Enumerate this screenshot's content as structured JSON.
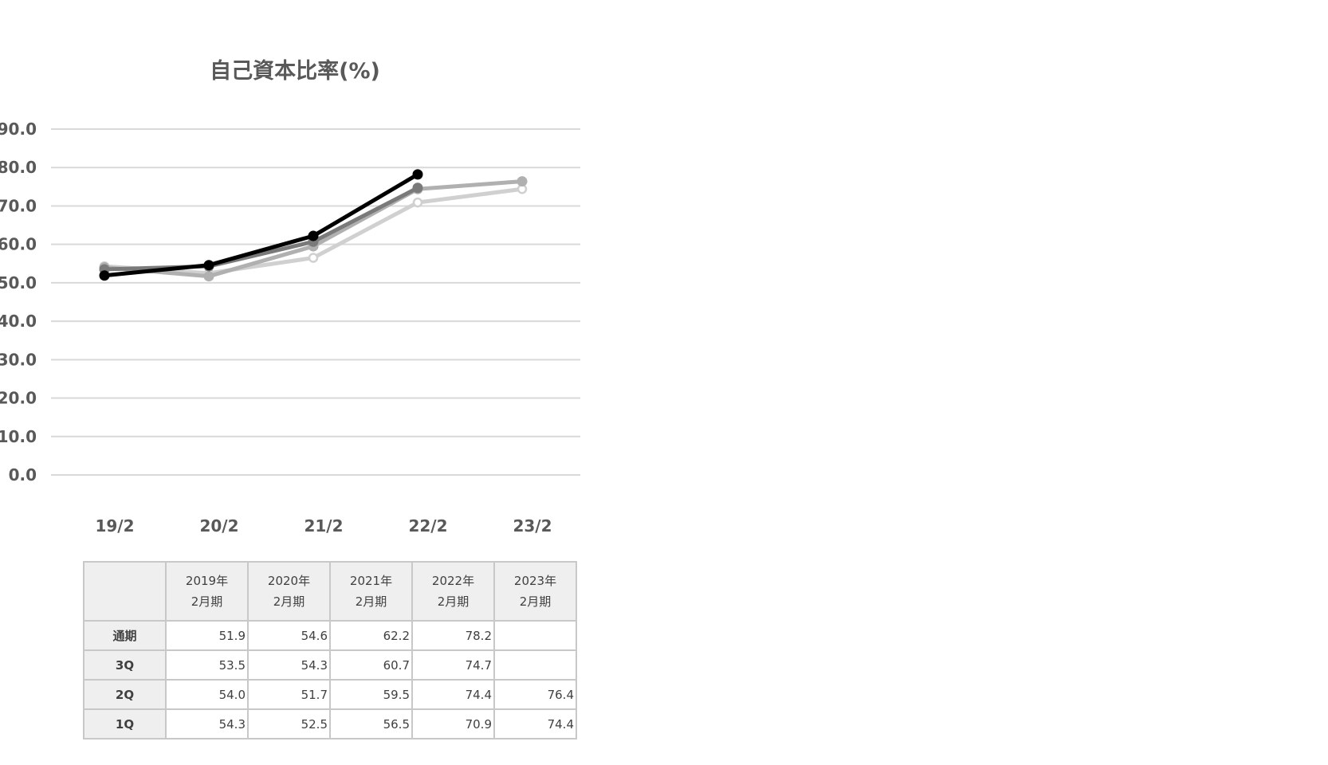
{
  "chart_data": {
    "type": "line",
    "title": "自己資本比率(%)",
    "categories": [
      "19/2",
      "20/2",
      "21/2",
      "22/2",
      "23/2"
    ],
    "ylim": [
      0,
      90
    ],
    "yticks": [
      "0.0",
      "10.0",
      "20.0",
      "30.0",
      "40.0",
      "50.0",
      "60.0",
      "70.0",
      "80.0",
      "90.0"
    ],
    "grid": true,
    "series": [
      {
        "name": "1Q",
        "values": [
          54.3,
          52.5,
          56.5,
          70.9,
          74.4
        ],
        "color": "#d0d0d0",
        "marker": "hollow"
      },
      {
        "name": "2Q",
        "values": [
          54.0,
          51.7,
          59.5,
          74.4,
          76.4
        ],
        "color": "#b0b0b0",
        "marker": "filled"
      },
      {
        "name": "3Q",
        "values": [
          53.5,
          54.3,
          60.7,
          74.7,
          null
        ],
        "color": "#7a7a7a",
        "marker": "filled"
      },
      {
        "name": "通期",
        "values": [
          51.9,
          54.6,
          62.2,
          78.2,
          null
        ],
        "color": "#000000",
        "marker": "filled"
      }
    ]
  },
  "table": {
    "columns": [
      {
        "year": "2019年",
        "period": "2月期"
      },
      {
        "year": "2020年",
        "period": "2月期"
      },
      {
        "year": "2021年",
        "period": "2月期"
      },
      {
        "year": "2022年",
        "period": "2月期"
      },
      {
        "year": "2023年",
        "period": "2月期"
      }
    ],
    "rows": [
      {
        "label": "通期",
        "cells": [
          "51.9",
          "54.6",
          "62.2",
          "78.2",
          ""
        ]
      },
      {
        "label": "3Q",
        "cells": [
          "53.5",
          "54.3",
          "60.7",
          "74.7",
          ""
        ]
      },
      {
        "label": "2Q",
        "cells": [
          "54.0",
          "51.7",
          "59.5",
          "74.4",
          "76.4"
        ]
      },
      {
        "label": "1Q",
        "cells": [
          "54.3",
          "52.5",
          "56.5",
          "70.9",
          "74.4"
        ]
      }
    ]
  }
}
